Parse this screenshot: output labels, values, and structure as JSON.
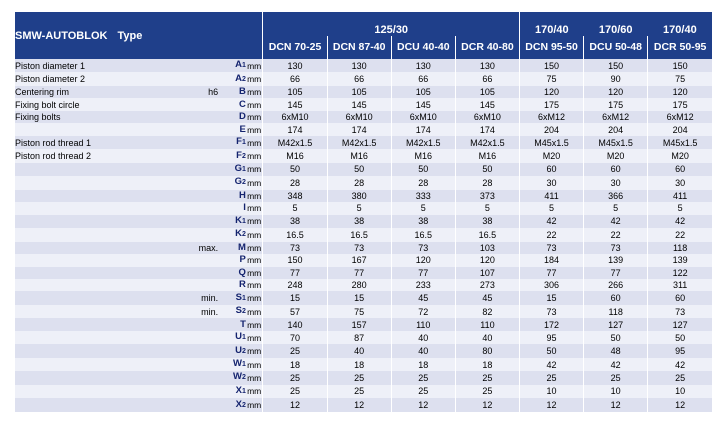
{
  "header": {
    "brand": "SMW-AUTOBLOK",
    "type_label": "Type",
    "group1": "125/30",
    "group2": "170/40",
    "group3": "170/60",
    "group4": "170/40",
    "models": [
      "DCN 70-25",
      "DCN 87-40",
      "DCU 40-40",
      "DCR 40-80",
      "DCN 95-50",
      "DCU 50-48",
      "DCR 50-95"
    ]
  },
  "rows": [
    {
      "desc": "Piston diameter 1",
      "qual": "",
      "sym": "A1",
      "unit": "mm",
      "values": [
        "130",
        "130",
        "130",
        "130",
        "150",
        "150",
        "150"
      ]
    },
    {
      "desc": "Piston diameter 2",
      "qual": "",
      "sym": "A2",
      "unit": "mm",
      "values": [
        "66",
        "66",
        "66",
        "66",
        "75",
        "90",
        "75"
      ]
    },
    {
      "desc": "Centering rim",
      "qual": "h6",
      "sym": "B",
      "unit": "mm",
      "values": [
        "105",
        "105",
        "105",
        "105",
        "120",
        "120",
        "120"
      ]
    },
    {
      "desc": "Fixing bolt circle",
      "qual": "",
      "sym": "C",
      "unit": "mm",
      "values": [
        "145",
        "145",
        "145",
        "145",
        "175",
        "175",
        "175"
      ]
    },
    {
      "desc": "Fixing bolts",
      "qual": "",
      "sym": "D",
      "unit": "mm",
      "values": [
        "6xM10",
        "6xM10",
        "6xM10",
        "6xM10",
        "6xM12",
        "6xM12",
        "6xM12"
      ]
    },
    {
      "desc": "",
      "qual": "",
      "sym": "E",
      "unit": "mm",
      "values": [
        "174",
        "174",
        "174",
        "174",
        "204",
        "204",
        "204"
      ]
    },
    {
      "desc": "Piston rod thread 1",
      "qual": "",
      "sym": "F1",
      "unit": "mm",
      "values": [
        "M42x1.5",
        "M42x1.5",
        "M42x1.5",
        "M42x1.5",
        "M45x1.5",
        "M45x1.5",
        "M45x1.5"
      ]
    },
    {
      "desc": "Piston rod thread 2",
      "qual": "",
      "sym": "F2",
      "unit": "mm",
      "values": [
        "M16",
        "M16",
        "M16",
        "M16",
        "M20",
        "M20",
        "M20"
      ]
    },
    {
      "desc": "",
      "qual": "",
      "sym": "G1",
      "unit": "mm",
      "values": [
        "50",
        "50",
        "50",
        "50",
        "60",
        "60",
        "60"
      ]
    },
    {
      "desc": "",
      "qual": "",
      "sym": "G2",
      "unit": "mm",
      "values": [
        "28",
        "28",
        "28",
        "28",
        "30",
        "30",
        "30"
      ]
    },
    {
      "desc": "",
      "qual": "",
      "sym": "H",
      "unit": "mm",
      "values": [
        "348",
        "380",
        "333",
        "373",
        "411",
        "366",
        "411"
      ]
    },
    {
      "desc": "",
      "qual": "",
      "sym": "I",
      "unit": "mm",
      "values": [
        "5",
        "5",
        "5",
        "5",
        "5",
        "5",
        "5"
      ]
    },
    {
      "desc": "",
      "qual": "",
      "sym": "K1",
      "unit": "mm",
      "values": [
        "38",
        "38",
        "38",
        "38",
        "42",
        "42",
        "42"
      ]
    },
    {
      "desc": "",
      "qual": "",
      "sym": "K2",
      "unit": "mm",
      "values": [
        "16.5",
        "16.5",
        "16.5",
        "16.5",
        "22",
        "22",
        "22"
      ]
    },
    {
      "desc": "",
      "qual": "max.",
      "sym": "M",
      "unit": "mm",
      "values": [
        "73",
        "73",
        "73",
        "103",
        "73",
        "73",
        "118"
      ]
    },
    {
      "desc": "",
      "qual": "",
      "sym": "P",
      "unit": "mm",
      "values": [
        "150",
        "167",
        "120",
        "120",
        "184",
        "139",
        "139"
      ]
    },
    {
      "desc": "",
      "qual": "",
      "sym": "Q",
      "unit": "mm",
      "values": [
        "77",
        "77",
        "77",
        "107",
        "77",
        "77",
        "122"
      ]
    },
    {
      "desc": "",
      "qual": "",
      "sym": "R",
      "unit": "mm",
      "values": [
        "248",
        "280",
        "233",
        "273",
        "306",
        "266",
        "311"
      ]
    },
    {
      "desc": "",
      "qual": "min.",
      "sym": "S1",
      "unit": "mm",
      "values": [
        "15",
        "15",
        "45",
        "45",
        "15",
        "60",
        "60"
      ]
    },
    {
      "desc": "",
      "qual": "min.",
      "sym": "S2",
      "unit": "mm",
      "values": [
        "57",
        "75",
        "72",
        "82",
        "73",
        "118",
        "73"
      ]
    },
    {
      "desc": "",
      "qual": "",
      "sym": "T",
      "unit": "mm",
      "values": [
        "140",
        "157",
        "110",
        "110",
        "172",
        "127",
        "127"
      ]
    },
    {
      "desc": "",
      "qual": "",
      "sym": "U1",
      "unit": "mm",
      "values": [
        "70",
        "87",
        "40",
        "40",
        "95",
        "50",
        "50"
      ]
    },
    {
      "desc": "",
      "qual": "",
      "sym": "U2",
      "unit": "mm",
      "values": [
        "25",
        "40",
        "40",
        "80",
        "50",
        "48",
        "95"
      ]
    },
    {
      "desc": "",
      "qual": "",
      "sym": "W1",
      "unit": "mm",
      "values": [
        "18",
        "18",
        "18",
        "18",
        "42",
        "42",
        "42"
      ]
    },
    {
      "desc": "",
      "qual": "",
      "sym": "W2",
      "unit": "mm",
      "values": [
        "25",
        "25",
        "25",
        "25",
        "25",
        "25",
        "25"
      ]
    },
    {
      "desc": "",
      "qual": "",
      "sym": "X1",
      "unit": "mm",
      "values": [
        "25",
        "25",
        "25",
        "25",
        "10",
        "10",
        "10"
      ]
    },
    {
      "desc": "",
      "qual": "",
      "sym": "X2",
      "unit": "mm",
      "values": [
        "12",
        "12",
        "12",
        "12",
        "12",
        "12",
        "12"
      ]
    }
  ]
}
